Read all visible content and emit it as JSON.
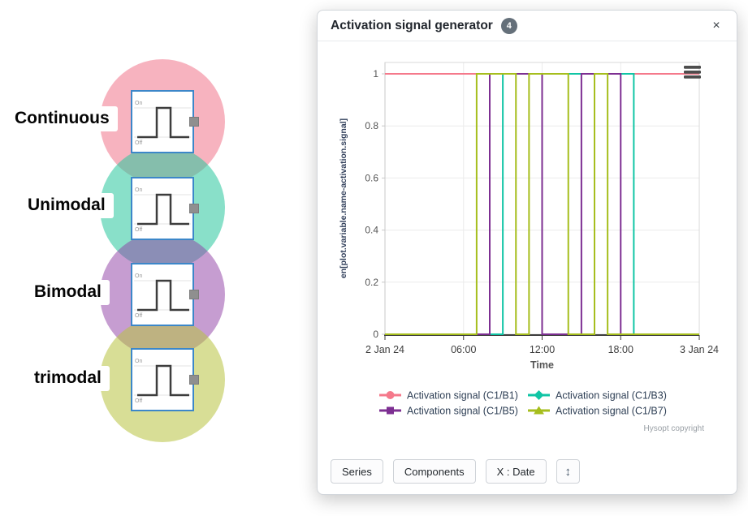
{
  "window": {
    "title": "Activation signal generator",
    "badge_count": "4",
    "close_label": "×"
  },
  "diagram": {
    "modes": [
      {
        "label": "Continuous",
        "circle_rgba": "rgba(238,93,119,0.47)"
      },
      {
        "label": "Unimodal",
        "circle_rgba": "rgba(40,199,157,0.55)"
      },
      {
        "label": "Bimodal",
        "circle_rgba": "rgba(141,59,163,0.50)"
      },
      {
        "label": "trimodal",
        "circle_rgba": "rgba(184,195,64,0.55)"
      }
    ],
    "block_icon": {
      "on_label": "On",
      "off_label": "Off"
    }
  },
  "chart_data": {
    "type": "line",
    "step": true,
    "xlabel": "Time",
    "ylabel": "en[plot.variable.name-activation.signal]",
    "xlim_hours": [
      0,
      24
    ],
    "ylim": [
      0,
      1
    ],
    "grid": true,
    "legend_position": "bottom",
    "yticks": [
      0,
      0.2,
      0.4,
      0.6,
      0.8,
      1
    ],
    "xticks": [
      {
        "h": 0,
        "label": "2 Jan 24"
      },
      {
        "h": 6,
        "label": "06:00"
      },
      {
        "h": 12,
        "label": "12:00"
      },
      {
        "h": 18,
        "label": "18:00"
      },
      {
        "h": 24,
        "label": "3 Jan 24"
      }
    ],
    "series": [
      {
        "name": "Activation signal (C1/B1)",
        "color": "#f5798b",
        "marker": "circle",
        "points": [
          [
            0,
            1
          ],
          [
            24,
            1
          ]
        ]
      },
      {
        "name": "Activation signal (C1/B3)",
        "color": "#10c5a5",
        "marker": "diamond",
        "points": [
          [
            0,
            0
          ],
          [
            9,
            1
          ],
          [
            19,
            0
          ],
          [
            24,
            0
          ]
        ]
      },
      {
        "name": "Activation signal (C1/B5)",
        "color": "#7d2f92",
        "marker": "square",
        "points": [
          [
            0,
            0
          ],
          [
            8,
            1
          ],
          [
            12,
            0
          ],
          [
            15,
            1
          ],
          [
            18,
            0
          ],
          [
            24,
            0
          ]
        ]
      },
      {
        "name": "Activation signal (C1/B7)",
        "color": "#a6be1d",
        "marker": "triangle",
        "points": [
          [
            0,
            0
          ],
          [
            7,
            1
          ],
          [
            10,
            0
          ],
          [
            11,
            1
          ],
          [
            14,
            0
          ],
          [
            16,
            1
          ],
          [
            17,
            0
          ],
          [
            24,
            0
          ]
        ]
      }
    ]
  },
  "footer": {
    "copyright": "Hysopt copyright"
  },
  "toolbar": {
    "buttons": [
      "Series",
      "Components",
      "X : Date"
    ],
    "resize_button": "↕"
  }
}
